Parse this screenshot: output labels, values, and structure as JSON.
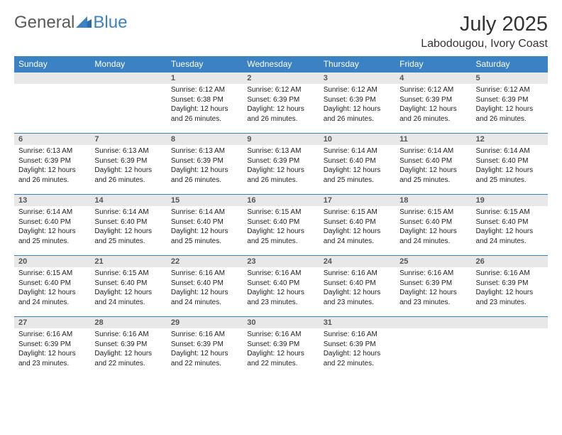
{
  "logo": {
    "general": "General",
    "blue": "Blue"
  },
  "title": "July 2025",
  "location": "Labodougou, Ivory Coast",
  "colors": {
    "header_bg": "#3b82c4",
    "header_fg": "#ffffff",
    "daynum_bg": "#e8e8e8",
    "rule": "#3b82c4",
    "logo_gray": "#5a5a5a",
    "logo_blue": "#3b82c4"
  },
  "day_headers": [
    "Sunday",
    "Monday",
    "Tuesday",
    "Wednesday",
    "Thursday",
    "Friday",
    "Saturday"
  ],
  "weeks": [
    [
      {
        "n": "",
        "sr": "",
        "ss": "",
        "dl": ""
      },
      {
        "n": "",
        "sr": "",
        "ss": "",
        "dl": ""
      },
      {
        "n": "1",
        "sr": "Sunrise: 6:12 AM",
        "ss": "Sunset: 6:38 PM",
        "dl": "Daylight: 12 hours and 26 minutes."
      },
      {
        "n": "2",
        "sr": "Sunrise: 6:12 AM",
        "ss": "Sunset: 6:39 PM",
        "dl": "Daylight: 12 hours and 26 minutes."
      },
      {
        "n": "3",
        "sr": "Sunrise: 6:12 AM",
        "ss": "Sunset: 6:39 PM",
        "dl": "Daylight: 12 hours and 26 minutes."
      },
      {
        "n": "4",
        "sr": "Sunrise: 6:12 AM",
        "ss": "Sunset: 6:39 PM",
        "dl": "Daylight: 12 hours and 26 minutes."
      },
      {
        "n": "5",
        "sr": "Sunrise: 6:12 AM",
        "ss": "Sunset: 6:39 PM",
        "dl": "Daylight: 12 hours and 26 minutes."
      }
    ],
    [
      {
        "n": "6",
        "sr": "Sunrise: 6:13 AM",
        "ss": "Sunset: 6:39 PM",
        "dl": "Daylight: 12 hours and 26 minutes."
      },
      {
        "n": "7",
        "sr": "Sunrise: 6:13 AM",
        "ss": "Sunset: 6:39 PM",
        "dl": "Daylight: 12 hours and 26 minutes."
      },
      {
        "n": "8",
        "sr": "Sunrise: 6:13 AM",
        "ss": "Sunset: 6:39 PM",
        "dl": "Daylight: 12 hours and 26 minutes."
      },
      {
        "n": "9",
        "sr": "Sunrise: 6:13 AM",
        "ss": "Sunset: 6:39 PM",
        "dl": "Daylight: 12 hours and 26 minutes."
      },
      {
        "n": "10",
        "sr": "Sunrise: 6:14 AM",
        "ss": "Sunset: 6:40 PM",
        "dl": "Daylight: 12 hours and 25 minutes."
      },
      {
        "n": "11",
        "sr": "Sunrise: 6:14 AM",
        "ss": "Sunset: 6:40 PM",
        "dl": "Daylight: 12 hours and 25 minutes."
      },
      {
        "n": "12",
        "sr": "Sunrise: 6:14 AM",
        "ss": "Sunset: 6:40 PM",
        "dl": "Daylight: 12 hours and 25 minutes."
      }
    ],
    [
      {
        "n": "13",
        "sr": "Sunrise: 6:14 AM",
        "ss": "Sunset: 6:40 PM",
        "dl": "Daylight: 12 hours and 25 minutes."
      },
      {
        "n": "14",
        "sr": "Sunrise: 6:14 AM",
        "ss": "Sunset: 6:40 PM",
        "dl": "Daylight: 12 hours and 25 minutes."
      },
      {
        "n": "15",
        "sr": "Sunrise: 6:14 AM",
        "ss": "Sunset: 6:40 PM",
        "dl": "Daylight: 12 hours and 25 minutes."
      },
      {
        "n": "16",
        "sr": "Sunrise: 6:15 AM",
        "ss": "Sunset: 6:40 PM",
        "dl": "Daylight: 12 hours and 25 minutes."
      },
      {
        "n": "17",
        "sr": "Sunrise: 6:15 AM",
        "ss": "Sunset: 6:40 PM",
        "dl": "Daylight: 12 hours and 24 minutes."
      },
      {
        "n": "18",
        "sr": "Sunrise: 6:15 AM",
        "ss": "Sunset: 6:40 PM",
        "dl": "Daylight: 12 hours and 24 minutes."
      },
      {
        "n": "19",
        "sr": "Sunrise: 6:15 AM",
        "ss": "Sunset: 6:40 PM",
        "dl": "Daylight: 12 hours and 24 minutes."
      }
    ],
    [
      {
        "n": "20",
        "sr": "Sunrise: 6:15 AM",
        "ss": "Sunset: 6:40 PM",
        "dl": "Daylight: 12 hours and 24 minutes."
      },
      {
        "n": "21",
        "sr": "Sunrise: 6:15 AM",
        "ss": "Sunset: 6:40 PM",
        "dl": "Daylight: 12 hours and 24 minutes."
      },
      {
        "n": "22",
        "sr": "Sunrise: 6:16 AM",
        "ss": "Sunset: 6:40 PM",
        "dl": "Daylight: 12 hours and 24 minutes."
      },
      {
        "n": "23",
        "sr": "Sunrise: 6:16 AM",
        "ss": "Sunset: 6:40 PM",
        "dl": "Daylight: 12 hours and 23 minutes."
      },
      {
        "n": "24",
        "sr": "Sunrise: 6:16 AM",
        "ss": "Sunset: 6:40 PM",
        "dl": "Daylight: 12 hours and 23 minutes."
      },
      {
        "n": "25",
        "sr": "Sunrise: 6:16 AM",
        "ss": "Sunset: 6:39 PM",
        "dl": "Daylight: 12 hours and 23 minutes."
      },
      {
        "n": "26",
        "sr": "Sunrise: 6:16 AM",
        "ss": "Sunset: 6:39 PM",
        "dl": "Daylight: 12 hours and 23 minutes."
      }
    ],
    [
      {
        "n": "27",
        "sr": "Sunrise: 6:16 AM",
        "ss": "Sunset: 6:39 PM",
        "dl": "Daylight: 12 hours and 23 minutes."
      },
      {
        "n": "28",
        "sr": "Sunrise: 6:16 AM",
        "ss": "Sunset: 6:39 PM",
        "dl": "Daylight: 12 hours and 22 minutes."
      },
      {
        "n": "29",
        "sr": "Sunrise: 6:16 AM",
        "ss": "Sunset: 6:39 PM",
        "dl": "Daylight: 12 hours and 22 minutes."
      },
      {
        "n": "30",
        "sr": "Sunrise: 6:16 AM",
        "ss": "Sunset: 6:39 PM",
        "dl": "Daylight: 12 hours and 22 minutes."
      },
      {
        "n": "31",
        "sr": "Sunrise: 6:16 AM",
        "ss": "Sunset: 6:39 PM",
        "dl": "Daylight: 12 hours and 22 minutes."
      },
      {
        "n": "",
        "sr": "",
        "ss": "",
        "dl": ""
      },
      {
        "n": "",
        "sr": "",
        "ss": "",
        "dl": ""
      }
    ]
  ]
}
